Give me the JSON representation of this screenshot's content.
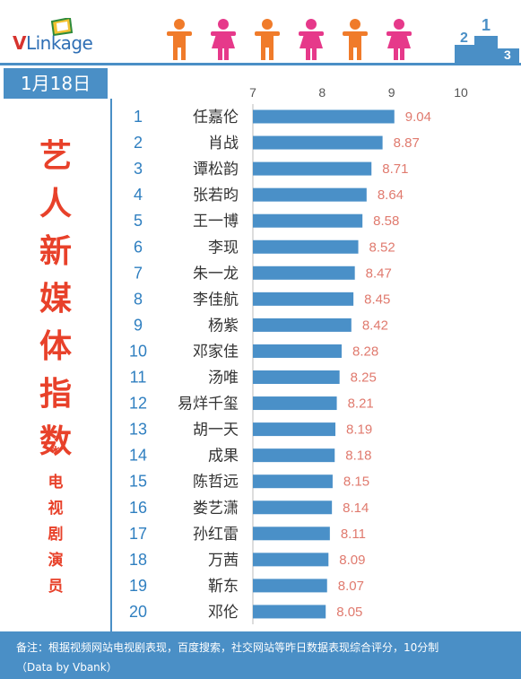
{
  "header": {
    "logo_v": "V",
    "logo_rest": "Linkage",
    "date": "1月18日"
  },
  "title": {
    "main": [
      "艺",
      "人",
      "新",
      "媒",
      "体",
      "指",
      "数"
    ],
    "star": "*",
    "sub": [
      "电",
      "视",
      "剧",
      "演",
      "员"
    ]
  },
  "colors": {
    "bar": "#4a90c8",
    "accent_red": "#e8412a",
    "header_blue": "#4a8fc6",
    "value_text": "#e07a6e"
  },
  "chart_data": {
    "type": "bar",
    "orientation": "horizontal",
    "xlim": [
      7,
      10
    ],
    "xticks": [
      7,
      8,
      9,
      10
    ],
    "grid": false,
    "ranks": [
      "1",
      "2",
      "3",
      "4",
      "5",
      "6",
      "7",
      "8",
      "9",
      "10",
      "11",
      "12",
      "13",
      "14",
      "15",
      "16",
      "17",
      "18",
      "19",
      "20"
    ],
    "categories": [
      "任嘉伦",
      "肖战",
      "谭松韵",
      "张若昀",
      "王一博",
      "李现",
      "朱一龙",
      "李佳航",
      "杨紫",
      "邓家佳",
      "汤唯",
      "易烊千玺",
      "胡一天",
      "成果",
      "陈哲远",
      "娄艺潇",
      "孙红雷",
      "万茜",
      "靳东",
      "邓伦"
    ],
    "values": [
      9.04,
      8.87,
      8.71,
      8.64,
      8.58,
      8.52,
      8.47,
      8.45,
      8.42,
      8.28,
      8.25,
      8.21,
      8.19,
      8.18,
      8.15,
      8.14,
      8.11,
      8.09,
      8.07,
      8.05
    ],
    "value_labels": [
      "9.04",
      "8.87",
      "8.71",
      "8.64",
      "8.58",
      "8.52",
      "8.47",
      "8.45",
      "8.42",
      "8.28",
      "8.25",
      "8.21",
      "8.19",
      "8.18",
      "8.15",
      "8.14",
      "8.11",
      "8.09",
      "8.07",
      "8.05"
    ]
  },
  "footer": {
    "note": "备注：根据视频网站电视剧表现，百度搜索，社交网站等昨日数据表现综合评分，10分制",
    "source": "（Data by Vbank）"
  }
}
